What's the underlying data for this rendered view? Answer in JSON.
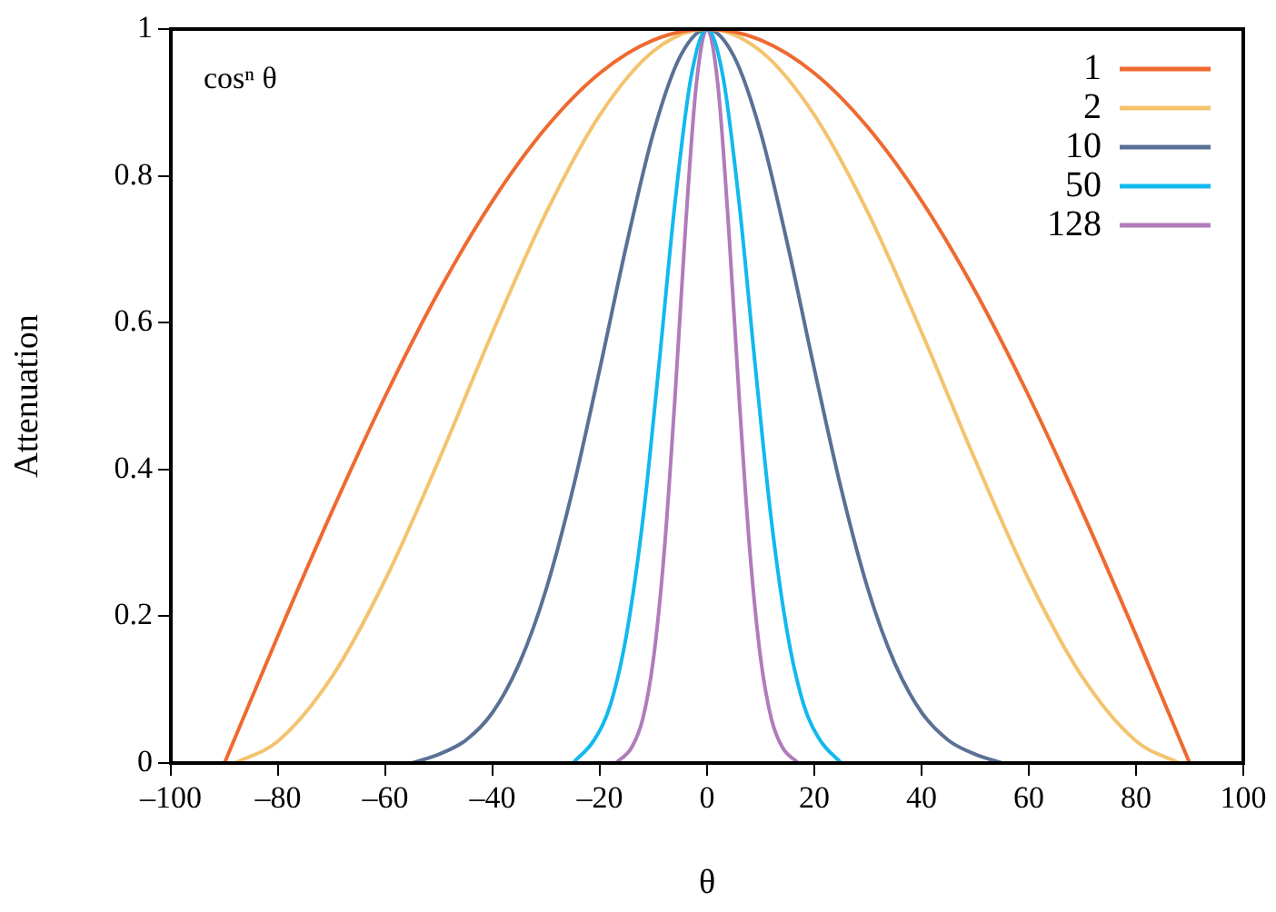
{
  "chart_data": {
    "type": "line",
    "xlabel": "θ",
    "ylabel": "Attenuation",
    "annotations": [
      "cosⁿ θ"
    ],
    "xlim": [
      -100,
      100
    ],
    "ylim": [
      0,
      1
    ],
    "xticks": [
      {
        "value": -100,
        "label": "–100"
      },
      {
        "value": -80,
        "label": "–80"
      },
      {
        "value": -60,
        "label": "–60"
      },
      {
        "value": -40,
        "label": "–40"
      },
      {
        "value": -20,
        "label": "–20"
      },
      0,
      20,
      40,
      60,
      80,
      100
    ],
    "yticks": [
      0,
      0.2,
      0.4,
      0.6,
      0.8,
      1
    ],
    "grid": false,
    "legend": "top right",
    "marker": "none",
    "line_style": "solid",
    "series": [
      {
        "name": "1",
        "color": "#ee6a30",
        "x": [
          -90,
          -80,
          -70,
          -60,
          -50,
          -40,
          -30,
          -20,
          -10,
          0,
          10,
          20,
          30,
          40,
          50,
          60,
          70,
          80,
          90
        ],
        "values": [
          0,
          0.174,
          0.342,
          0.5,
          0.643,
          0.766,
          0.866,
          0.94,
          0.985,
          1,
          0.985,
          0.94,
          0.866,
          0.766,
          0.643,
          0.5,
          0.342,
          0.174,
          0
        ]
      },
      {
        "name": "2",
        "color": "#f4c36e",
        "x": [
          -88,
          -80,
          -70,
          -60,
          -50,
          -40,
          -30,
          -20,
          -10,
          0,
          10,
          20,
          30,
          40,
          50,
          60,
          70,
          80,
          88
        ],
        "values": [
          0,
          0.03,
          0.117,
          0.25,
          0.413,
          0.587,
          0.75,
          0.883,
          0.97,
          1,
          0.97,
          0.883,
          0.75,
          0.587,
          0.413,
          0.25,
          0.117,
          0.03,
          0
        ]
      },
      {
        "name": "10",
        "color": "#5a7195",
        "x": [
          -55,
          -50,
          -45,
          -40,
          -35,
          -30,
          -25,
          -20,
          -15,
          -10,
          -5,
          0,
          5,
          10,
          15,
          20,
          25,
          30,
          35,
          40,
          45,
          50,
          55
        ],
        "values": [
          0,
          0.012,
          0.031,
          0.069,
          0.136,
          0.237,
          0.374,
          0.537,
          0.707,
          0.859,
          0.963,
          1,
          0.963,
          0.859,
          0.707,
          0.537,
          0.374,
          0.237,
          0.136,
          0.069,
          0.031,
          0.012,
          0
        ]
      },
      {
        "name": "50",
        "color": "#12b9ee",
        "x": [
          -25,
          -21,
          -18,
          -15,
          -12,
          -9,
          -6,
          -3,
          0,
          3,
          6,
          9,
          12,
          15,
          18,
          21,
          25
        ],
        "values": [
          0,
          0.032,
          0.08,
          0.176,
          0.33,
          0.54,
          0.762,
          0.934,
          1,
          0.934,
          0.762,
          0.54,
          0.33,
          0.176,
          0.08,
          0.032,
          0
        ]
      },
      {
        "name": "128",
        "color": "#b07cba",
        "x": [
          -17,
          -14,
          -12,
          -10,
          -8,
          -6,
          -4,
          -2,
          0,
          2,
          4,
          6,
          8,
          10,
          12,
          14,
          17
        ],
        "values": [
          0,
          0.022,
          0.06,
          0.142,
          0.287,
          0.496,
          0.732,
          0.925,
          1,
          0.925,
          0.732,
          0.496,
          0.287,
          0.142,
          0.06,
          0.022,
          0
        ]
      }
    ]
  }
}
